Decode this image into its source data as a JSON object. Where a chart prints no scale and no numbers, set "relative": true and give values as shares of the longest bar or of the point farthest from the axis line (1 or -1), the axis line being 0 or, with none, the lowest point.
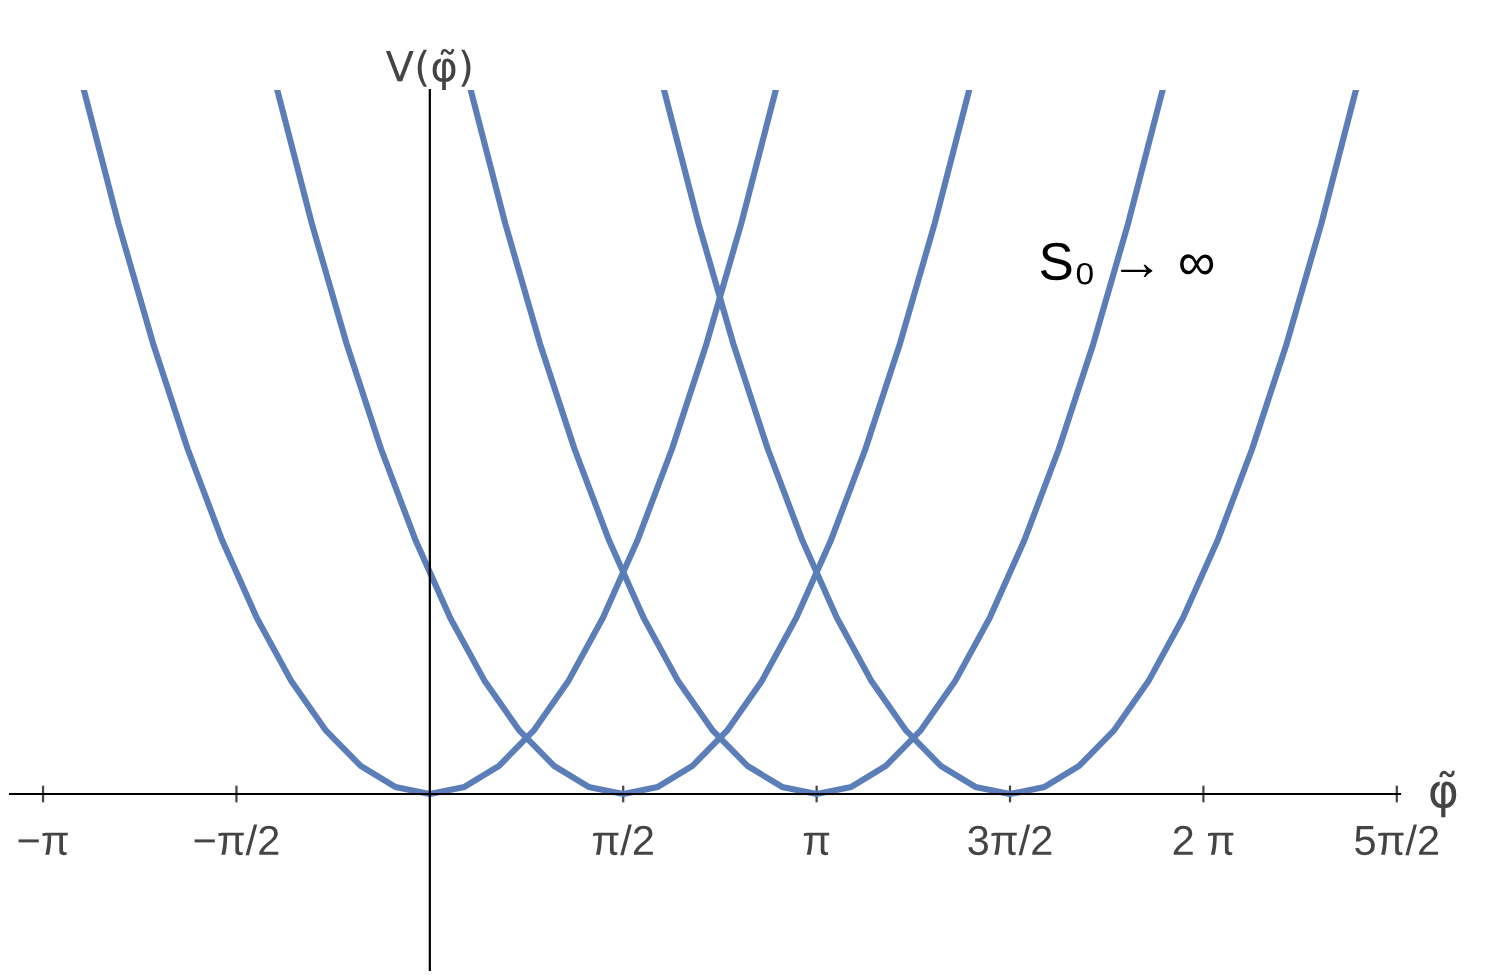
{
  "chart_data": {
    "type": "line",
    "relative": true,
    "ylabel": "V(φ̃)",
    "xlabel": "φ̃",
    "annotations": [
      "S₀ → ∞"
    ],
    "xlim": [
      -3.41,
      7.88
    ],
    "xticks": [
      {
        "value": -3.1416,
        "label": "−π"
      },
      {
        "value": -1.5708,
        "label": "−π/2"
      },
      {
        "value": 1.5708,
        "label": "π/2"
      },
      {
        "value": 3.1416,
        "label": "π"
      },
      {
        "value": 4.7124,
        "label": "3π/2"
      },
      {
        "value": 6.2832,
        "label": "2 π"
      },
      {
        "value": 7.854,
        "label": "5π/2"
      }
    ],
    "grid": false,
    "marker": "none",
    "line_style": "solid",
    "series": [
      {
        "color": "#5b7db8",
        "x": [
          -2.81,
          -2.529,
          -2.248,
          -1.967,
          -1.686,
          -1.405,
          -1.124,
          -0.843,
          -0.562,
          -0.281,
          0,
          0.281,
          0.562,
          0.843,
          1.124,
          1.405,
          1.686,
          1.967,
          2.248,
          2.529,
          2.81
        ],
        "values": [
          1,
          0.81,
          0.64,
          0.49,
          0.36,
          0.25,
          0.16,
          0.09,
          0.04,
          0.01,
          0,
          0.01,
          0.04,
          0.09,
          0.16,
          0.25,
          0.36,
          0.49,
          0.64,
          0.81,
          1
        ]
      },
      {
        "color": "#5b7db8",
        "x": [
          -1.239,
          -0.958,
          -0.677,
          -0.396,
          -0.115,
          0.166,
          0.447,
          0.728,
          1.009,
          1.29,
          1.571,
          1.852,
          2.133,
          2.414,
          2.695,
          2.976,
          3.257,
          3.538,
          3.819,
          4.1,
          4.381
        ],
        "values": [
          1,
          0.81,
          0.64,
          0.49,
          0.36,
          0.25,
          0.16,
          0.09,
          0.04,
          0.01,
          0,
          0.01,
          0.04,
          0.09,
          0.16,
          0.25,
          0.36,
          0.49,
          0.64,
          0.81,
          1
        ]
      },
      {
        "color": "#5b7db8",
        "x": [
          0.332,
          0.613,
          0.894,
          1.175,
          1.456,
          1.737,
          2.018,
          2.299,
          2.58,
          2.861,
          3.142,
          3.423,
          3.704,
          3.985,
          4.266,
          4.547,
          4.828,
          5.109,
          5.39,
          5.671,
          5.952
        ],
        "values": [
          1,
          0.81,
          0.64,
          0.49,
          0.36,
          0.25,
          0.16,
          0.09,
          0.04,
          0.01,
          0,
          0.01,
          0.04,
          0.09,
          0.16,
          0.25,
          0.36,
          0.49,
          0.64,
          0.81,
          1
        ]
      },
      {
        "color": "#5b7db8",
        "x": [
          1.902,
          2.183,
          2.464,
          2.745,
          3.026,
          3.307,
          3.588,
          3.869,
          4.15,
          4.431,
          4.712,
          4.993,
          5.274,
          5.555,
          5.836,
          6.117,
          6.398,
          6.679,
          6.96,
          7.241,
          7.522
        ],
        "values": [
          1,
          0.81,
          0.64,
          0.49,
          0.36,
          0.25,
          0.16,
          0.09,
          0.04,
          0.01,
          0,
          0.01,
          0.04,
          0.09,
          0.16,
          0.25,
          0.36,
          0.49,
          0.64,
          0.81,
          1
        ]
      }
    ]
  }
}
